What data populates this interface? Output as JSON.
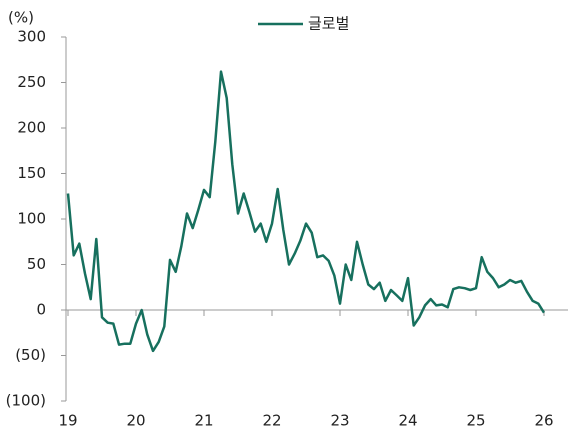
{
  "chart_data": {
    "type": "line",
    "y_label": "(%)",
    "categories": [
      "19",
      null,
      null,
      null,
      null,
      null,
      null,
      null,
      null,
      null,
      null,
      null,
      "20",
      null,
      null,
      null,
      null,
      null,
      null,
      null,
      null,
      null,
      null,
      null,
      "21",
      null,
      null,
      null,
      null,
      null,
      null,
      null,
      null,
      null,
      null,
      null,
      "22",
      null,
      null,
      null,
      null,
      null,
      null,
      null,
      null,
      null,
      null,
      null,
      "23",
      null,
      null,
      null,
      null,
      null,
      null,
      null,
      null,
      null,
      null,
      null,
      "24",
      null,
      null,
      null,
      null,
      null,
      null,
      null,
      null,
      null,
      null,
      null,
      "25",
      null,
      null,
      null,
      null,
      null,
      null,
      null,
      null,
      null,
      null,
      null,
      "26"
    ],
    "series": [
      {
        "name": "글로벌",
        "color": "#17705e",
        "values": [
          128,
          60,
          73,
          40,
          12,
          78,
          -8,
          -14,
          -15,
          -38,
          -37,
          -37,
          -15,
          0,
          -27,
          -45,
          -35,
          -18,
          55,
          42,
          70,
          106,
          90,
          110,
          132,
          124,
          185,
          262,
          233,
          160,
          106,
          128,
          108,
          86,
          95,
          75,
          95,
          133,
          88,
          50,
          62,
          76,
          95,
          85,
          58,
          60,
          54,
          38,
          7,
          50,
          33,
          75,
          50,
          28,
          23,
          30,
          10,
          22,
          16,
          10,
          35,
          -17,
          -8,
          5,
          12,
          5,
          6,
          3,
          23,
          25,
          24,
          22,
          24,
          58,
          42,
          35,
          25,
          28,
          33,
          30,
          32,
          20,
          10,
          7,
          -3
        ]
      }
    ],
    "ylim": [
      -100,
      300
    ],
    "yticks": [
      300,
      250,
      200,
      150,
      100,
      50,
      0,
      {
        "value": -50,
        "label": "(50)"
      },
      {
        "value": -100,
        "label": "(100)"
      }
    ],
    "legend": "top"
  }
}
